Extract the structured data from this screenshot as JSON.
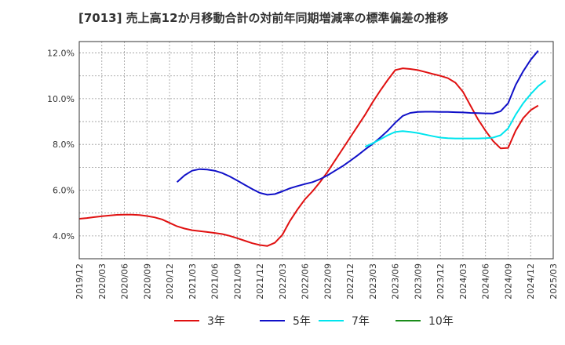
{
  "chart_data": {
    "type": "line",
    "title": "[7013]  売上高12か月移動合計の対前年同期増減率の標準偏差の推移",
    "xlabel": "",
    "ylabel": "",
    "x_ticks": [
      "2019/12",
      "2020/03",
      "2020/06",
      "2020/09",
      "2020/12",
      "2021/03",
      "2021/06",
      "2021/09",
      "2021/12",
      "2022/03",
      "2022/06",
      "2022/09",
      "2022/12",
      "2023/03",
      "2023/06",
      "2023/09",
      "2023/12",
      "2024/03",
      "2024/06",
      "2024/09",
      "2024/12",
      "2025/03"
    ],
    "y_ticks": [
      "4.0%",
      "6.0%",
      "8.0%",
      "10.0%",
      "12.0%"
    ],
    "ylim": [
      3.0,
      12.5
    ],
    "grid": true,
    "legend_position": "bottom",
    "series": [
      {
        "name": "3年",
        "color": "#e01010",
        "points": [
          [
            "2019/12",
            4.75
          ],
          [
            "2020/01",
            4.78
          ],
          [
            "2020/02",
            4.82
          ],
          [
            "2020/03",
            4.86
          ],
          [
            "2020/04",
            4.89
          ],
          [
            "2020/05",
            4.92
          ],
          [
            "2020/06",
            4.93
          ],
          [
            "2020/07",
            4.93
          ],
          [
            "2020/08",
            4.91
          ],
          [
            "2020/09",
            4.87
          ],
          [
            "2020/10",
            4.81
          ],
          [
            "2020/11",
            4.72
          ],
          [
            "2020/12",
            4.57
          ],
          [
            "2021/01",
            4.42
          ],
          [
            "2021/02",
            4.32
          ],
          [
            "2021/03",
            4.25
          ],
          [
            "2021/04",
            4.21
          ],
          [
            "2021/05",
            4.17
          ],
          [
            "2021/06",
            4.13
          ],
          [
            "2021/07",
            4.08
          ],
          [
            "2021/08",
            4.0
          ],
          [
            "2021/09",
            3.9
          ],
          [
            "2021/10",
            3.79
          ],
          [
            "2021/11",
            3.68
          ],
          [
            "2021/12",
            3.6
          ],
          [
            "2022/01",
            3.56
          ],
          [
            "2022/02",
            3.7
          ],
          [
            "2022/03",
            4.05
          ],
          [
            "2022/04",
            4.65
          ],
          [
            "2022/05",
            5.15
          ],
          [
            "2022/06",
            5.6
          ],
          [
            "2022/07",
            5.95
          ],
          [
            "2022/08",
            6.35
          ],
          [
            "2022/09",
            6.8
          ],
          [
            "2022/10",
            7.3
          ],
          [
            "2022/11",
            7.8
          ],
          [
            "2022/12",
            8.3
          ],
          [
            "2023/01",
            8.8
          ],
          [
            "2023/02",
            9.3
          ],
          [
            "2023/03",
            9.85
          ],
          [
            "2023/04",
            10.35
          ],
          [
            "2023/05",
            10.82
          ],
          [
            "2023/06",
            11.25
          ],
          [
            "2023/07",
            11.33
          ],
          [
            "2023/08",
            11.3
          ],
          [
            "2023/09",
            11.25
          ],
          [
            "2023/10",
            11.17
          ],
          [
            "2023/11",
            11.08
          ],
          [
            "2023/12",
            11.0
          ],
          [
            "2024/01",
            10.9
          ],
          [
            "2024/02",
            10.7
          ],
          [
            "2024/03",
            10.3
          ],
          [
            "2024/04",
            9.7
          ],
          [
            "2024/05",
            9.1
          ],
          [
            "2024/06",
            8.6
          ],
          [
            "2024/07",
            8.15
          ],
          [
            "2024/08",
            7.83
          ],
          [
            "2024/09",
            7.85
          ],
          [
            "2024/10",
            8.6
          ],
          [
            "2024/11",
            9.15
          ],
          [
            "2024/12",
            9.5
          ],
          [
            "2025/01",
            9.7
          ]
        ]
      },
      {
        "name": "5年",
        "color": "#1010c8",
        "points": [
          [
            "2021/01",
            6.35
          ],
          [
            "2021/02",
            6.65
          ],
          [
            "2021/03",
            6.85
          ],
          [
            "2021/04",
            6.92
          ],
          [
            "2021/05",
            6.9
          ],
          [
            "2021/06",
            6.85
          ],
          [
            "2021/07",
            6.75
          ],
          [
            "2021/08",
            6.6
          ],
          [
            "2021/09",
            6.42
          ],
          [
            "2021/10",
            6.23
          ],
          [
            "2021/11",
            6.05
          ],
          [
            "2021/12",
            5.88
          ],
          [
            "2022/01",
            5.8
          ],
          [
            "2022/02",
            5.83
          ],
          [
            "2022/03",
            5.95
          ],
          [
            "2022/04",
            6.08
          ],
          [
            "2022/05",
            6.18
          ],
          [
            "2022/06",
            6.27
          ],
          [
            "2022/07",
            6.35
          ],
          [
            "2022/08",
            6.48
          ],
          [
            "2022/09",
            6.65
          ],
          [
            "2022/10",
            6.85
          ],
          [
            "2022/11",
            7.05
          ],
          [
            "2022/12",
            7.28
          ],
          [
            "2023/01",
            7.52
          ],
          [
            "2023/02",
            7.78
          ],
          [
            "2023/03",
            8.02
          ],
          [
            "2023/04",
            8.3
          ],
          [
            "2023/05",
            8.6
          ],
          [
            "2023/06",
            8.95
          ],
          [
            "2023/07",
            9.25
          ],
          [
            "2023/08",
            9.38
          ],
          [
            "2023/09",
            9.42
          ],
          [
            "2023/10",
            9.43
          ],
          [
            "2023/11",
            9.43
          ],
          [
            "2023/12",
            9.42
          ],
          [
            "2024/01",
            9.42
          ],
          [
            "2024/02",
            9.41
          ],
          [
            "2024/03",
            9.4
          ],
          [
            "2024/04",
            9.38
          ],
          [
            "2024/05",
            9.37
          ],
          [
            "2024/06",
            9.36
          ],
          [
            "2024/07",
            9.35
          ],
          [
            "2024/08",
            9.45
          ],
          [
            "2024/09",
            9.8
          ],
          [
            "2024/10",
            10.6
          ],
          [
            "2024/11",
            11.2
          ],
          [
            "2024/12",
            11.7
          ],
          [
            "2025/01",
            12.1
          ]
        ]
      },
      {
        "name": "7年",
        "color": "#00e5ee",
        "points": [
          [
            "2023/02",
            7.9
          ],
          [
            "2023/03",
            8.05
          ],
          [
            "2023/04",
            8.22
          ],
          [
            "2023/05",
            8.4
          ],
          [
            "2023/06",
            8.55
          ],
          [
            "2023/07",
            8.58
          ],
          [
            "2023/08",
            8.55
          ],
          [
            "2023/09",
            8.5
          ],
          [
            "2023/10",
            8.43
          ],
          [
            "2023/11",
            8.36
          ],
          [
            "2023/12",
            8.3
          ],
          [
            "2024/01",
            8.27
          ],
          [
            "2024/02",
            8.26
          ],
          [
            "2024/03",
            8.26
          ],
          [
            "2024/04",
            8.26
          ],
          [
            "2024/05",
            8.26
          ],
          [
            "2024/06",
            8.27
          ],
          [
            "2024/07",
            8.3
          ],
          [
            "2024/08",
            8.4
          ],
          [
            "2024/09",
            8.7
          ],
          [
            "2024/10",
            9.3
          ],
          [
            "2024/11",
            9.8
          ],
          [
            "2024/12",
            10.2
          ],
          [
            "2025/01",
            10.55
          ],
          [
            "2025/02",
            10.8
          ]
        ]
      },
      {
        "name": "10年",
        "color": "#1a8c1a",
        "points": []
      }
    ]
  }
}
